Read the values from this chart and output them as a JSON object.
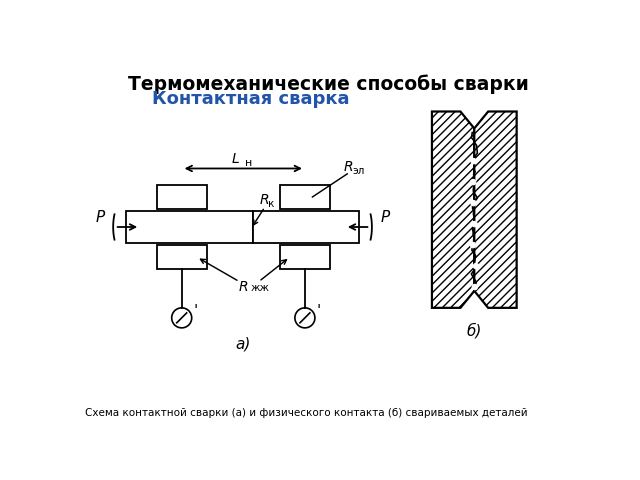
{
  "title1": "Термомеханические способы сварки",
  "title2": "Контактная сварка",
  "title2_color": "#2255aa",
  "caption": "Схема контактной сварки (а) и физического контакта (б) свариваемых деталей",
  "label_a": "а)",
  "label_b": "б)",
  "background_color": "#ffffff",
  "line_color": "#000000"
}
